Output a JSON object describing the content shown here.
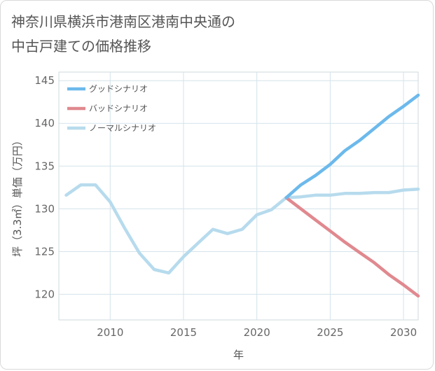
{
  "chart_data": {
    "type": "line",
    "title_lines": [
      "神奈川県横浜市港南区港南中央通の",
      "中古戸建ての価格推移"
    ],
    "xlabel": "年",
    "ylabel": "坪（3.3㎡）単価（万円）",
    "xlim": [
      2006.5,
      2031
    ],
    "ylim": [
      117,
      146
    ],
    "xticks": [
      2010,
      2015,
      2020,
      2025,
      2030
    ],
    "yticks": [
      120,
      125,
      130,
      135,
      140,
      145
    ],
    "grid": true,
    "legend_position": "top-left",
    "series": [
      {
        "name": "グッドシナリオ",
        "color": "#6cb9ec",
        "x": [
          2022,
          2023,
          2024,
          2025,
          2026,
          2027,
          2028,
          2029,
          2030,
          2031
        ],
        "values": [
          131.3,
          132.8,
          133.9,
          135.2,
          136.8,
          138.0,
          139.4,
          140.8,
          142.0,
          143.3
        ]
      },
      {
        "name": "バッドシナリオ",
        "color": "#e0898f",
        "x": [
          2022,
          2023,
          2024,
          2025,
          2026,
          2027,
          2028,
          2029,
          2030,
          2031
        ],
        "values": [
          131.3,
          130.0,
          128.7,
          127.4,
          126.1,
          124.9,
          123.7,
          122.3,
          121.1,
          119.8
        ]
      },
      {
        "name": "ノーマルシナリオ",
        "color": "#b7dbed",
        "x": [
          2007,
          2008,
          2009,
          2010,
          2011,
          2012,
          2013,
          2014,
          2015,
          2016,
          2017,
          2018,
          2019,
          2020,
          2021,
          2022,
          2023,
          2024,
          2025,
          2026,
          2027,
          2028,
          2029,
          2030,
          2031
        ],
        "values": [
          131.6,
          132.8,
          132.8,
          130.8,
          127.7,
          124.8,
          122.9,
          122.5,
          124.4,
          126.0,
          127.6,
          127.1,
          127.6,
          129.3,
          129.9,
          131.3,
          131.4,
          131.6,
          131.6,
          131.8,
          131.8,
          131.9,
          131.9,
          132.2,
          132.3
        ]
      }
    ]
  }
}
